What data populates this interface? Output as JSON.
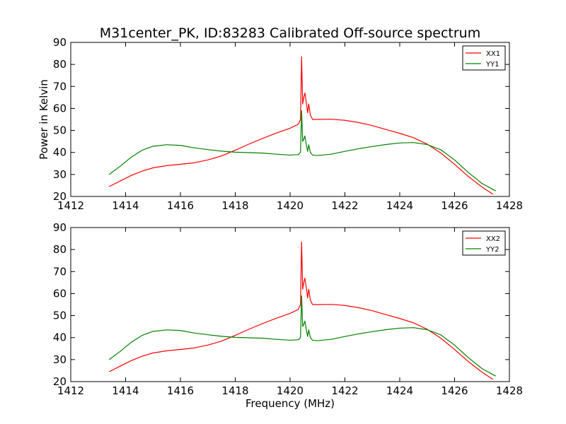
{
  "figure_title": "M31center_PK, ID:83283 Calibrated Off-source spectrum",
  "chart_data": [
    {
      "type": "line",
      "title": "",
      "xlabel": "",
      "ylabel": "Power in Kelvin",
      "xlim": [
        1412,
        1428
      ],
      "ylim": [
        20,
        90
      ],
      "xticks": [
        1412,
        1414,
        1416,
        1418,
        1420,
        1422,
        1424,
        1426,
        1428
      ],
      "yticks": [
        20,
        30,
        40,
        50,
        60,
        70,
        80,
        90
      ],
      "legend_position": "top-right",
      "series": [
        {
          "name": "XX1",
          "color": "#ff0000",
          "points": [
            [
              1413.4,
              24.5
            ],
            [
              1413.8,
              27.0
            ],
            [
              1414.2,
              29.5
            ],
            [
              1414.6,
              31.5
            ],
            [
              1415.0,
              33.0
            ],
            [
              1415.5,
              34.0
            ],
            [
              1416.0,
              34.6
            ],
            [
              1416.5,
              35.3
            ],
            [
              1417.0,
              36.6
            ],
            [
              1417.5,
              38.4
            ],
            [
              1418.0,
              41.0
            ],
            [
              1418.5,
              43.8
            ],
            [
              1419.0,
              46.4
            ],
            [
              1419.5,
              48.8
            ],
            [
              1420.0,
              51.0
            ],
            [
              1420.3,
              52.8
            ],
            [
              1420.38,
              55.0
            ],
            [
              1420.42,
              83.5
            ],
            [
              1420.46,
              62.0
            ],
            [
              1420.5,
              65.0
            ],
            [
              1420.54,
              67.0
            ],
            [
              1420.6,
              62.0
            ],
            [
              1420.64,
              58.0
            ],
            [
              1420.68,
              62.0
            ],
            [
              1420.74,
              57.0
            ],
            [
              1420.82,
              55.0
            ],
            [
              1421.0,
              55.0
            ],
            [
              1421.5,
              55.1
            ],
            [
              1422.0,
              54.6
            ],
            [
              1422.5,
              53.6
            ],
            [
              1423.0,
              52.2
            ],
            [
              1423.5,
              50.4
            ],
            [
              1424.0,
              48.7
            ],
            [
              1424.5,
              46.7
            ],
            [
              1425.0,
              43.8
            ],
            [
              1425.5,
              39.7
            ],
            [
              1426.0,
              34.6
            ],
            [
              1426.5,
              29.1
            ],
            [
              1427.0,
              24.3
            ],
            [
              1427.4,
              21.0
            ]
          ]
        },
        {
          "name": "YY1",
          "color": "#008000",
          "points": [
            [
              1413.4,
              30.0
            ],
            [
              1413.8,
              33.7
            ],
            [
              1414.2,
              37.8
            ],
            [
              1414.6,
              41.0
            ],
            [
              1415.0,
              42.8
            ],
            [
              1415.5,
              43.5
            ],
            [
              1416.0,
              43.2
            ],
            [
              1416.5,
              42.1
            ],
            [
              1417.0,
              41.3
            ],
            [
              1417.5,
              40.6
            ],
            [
              1418.0,
              40.1
            ],
            [
              1418.5,
              39.9
            ],
            [
              1419.0,
              39.7
            ],
            [
              1419.5,
              39.2
            ],
            [
              1420.0,
              38.8
            ],
            [
              1420.3,
              39.0
            ],
            [
              1420.38,
              40.0
            ],
            [
              1420.42,
              59.0
            ],
            [
              1420.46,
              45.0
            ],
            [
              1420.5,
              46.0
            ],
            [
              1420.54,
              47.5
            ],
            [
              1420.6,
              43.0
            ],
            [
              1420.64,
              40.5
            ],
            [
              1420.68,
              43.5
            ],
            [
              1420.74,
              40.0
            ],
            [
              1420.82,
              38.8
            ],
            [
              1421.0,
              38.6
            ],
            [
              1421.5,
              39.2
            ],
            [
              1422.0,
              40.5
            ],
            [
              1422.5,
              41.7
            ],
            [
              1423.0,
              42.7
            ],
            [
              1423.5,
              43.6
            ],
            [
              1424.0,
              44.3
            ],
            [
              1424.5,
              44.5
            ],
            [
              1425.0,
              43.6
            ],
            [
              1425.5,
              41.2
            ],
            [
              1426.0,
              36.6
            ],
            [
              1426.5,
              30.9
            ],
            [
              1427.0,
              25.9
            ],
            [
              1427.5,
              22.5
            ]
          ]
        }
      ]
    },
    {
      "type": "line",
      "title": "",
      "xlabel": "Frequency (MHz)",
      "ylabel": "",
      "xlim": [
        1412,
        1428
      ],
      "ylim": [
        20,
        90
      ],
      "xticks": [
        1412,
        1414,
        1416,
        1418,
        1420,
        1422,
        1424,
        1426,
        1428
      ],
      "yticks": [
        20,
        30,
        40,
        50,
        60,
        70,
        80,
        90
      ],
      "legend_position": "top-right",
      "series": [
        {
          "name": "XX2",
          "color": "#ff0000",
          "points": [
            [
              1413.4,
              24.5
            ],
            [
              1413.8,
              27.0
            ],
            [
              1414.2,
              29.5
            ],
            [
              1414.6,
              31.5
            ],
            [
              1415.0,
              33.0
            ],
            [
              1415.5,
              34.0
            ],
            [
              1416.0,
              34.6
            ],
            [
              1416.5,
              35.3
            ],
            [
              1417.0,
              36.6
            ],
            [
              1417.5,
              38.4
            ],
            [
              1418.0,
              41.0
            ],
            [
              1418.5,
              43.8
            ],
            [
              1419.0,
              46.4
            ],
            [
              1419.5,
              48.8
            ],
            [
              1420.0,
              51.0
            ],
            [
              1420.3,
              52.8
            ],
            [
              1420.38,
              55.0
            ],
            [
              1420.42,
              83.5
            ],
            [
              1420.46,
              62.0
            ],
            [
              1420.5,
              65.0
            ],
            [
              1420.54,
              67.0
            ],
            [
              1420.6,
              62.0
            ],
            [
              1420.64,
              58.0
            ],
            [
              1420.68,
              62.0
            ],
            [
              1420.74,
              57.0
            ],
            [
              1420.82,
              55.0
            ],
            [
              1421.0,
              55.0
            ],
            [
              1421.5,
              55.1
            ],
            [
              1422.0,
              54.6
            ],
            [
              1422.5,
              53.6
            ],
            [
              1423.0,
              52.2
            ],
            [
              1423.5,
              50.4
            ],
            [
              1424.0,
              48.7
            ],
            [
              1424.5,
              46.7
            ],
            [
              1425.0,
              43.8
            ],
            [
              1425.5,
              39.7
            ],
            [
              1426.0,
              34.6
            ],
            [
              1426.5,
              29.1
            ],
            [
              1427.0,
              24.3
            ],
            [
              1427.4,
              21.0
            ]
          ]
        },
        {
          "name": "YY2",
          "color": "#008000",
          "points": [
            [
              1413.4,
              30.0
            ],
            [
              1413.8,
              33.7
            ],
            [
              1414.2,
              37.8
            ],
            [
              1414.6,
              41.0
            ],
            [
              1415.0,
              42.8
            ],
            [
              1415.5,
              43.5
            ],
            [
              1416.0,
              43.2
            ],
            [
              1416.5,
              42.1
            ],
            [
              1417.0,
              41.3
            ],
            [
              1417.5,
              40.6
            ],
            [
              1418.0,
              40.1
            ],
            [
              1418.5,
              39.9
            ],
            [
              1419.0,
              39.7
            ],
            [
              1419.5,
              39.2
            ],
            [
              1420.0,
              38.8
            ],
            [
              1420.3,
              39.0
            ],
            [
              1420.38,
              40.0
            ],
            [
              1420.42,
              59.0
            ],
            [
              1420.46,
              45.0
            ],
            [
              1420.5,
              46.0
            ],
            [
              1420.54,
              47.5
            ],
            [
              1420.6,
              43.0
            ],
            [
              1420.64,
              40.5
            ],
            [
              1420.68,
              43.5
            ],
            [
              1420.74,
              40.0
            ],
            [
              1420.82,
              38.8
            ],
            [
              1421.0,
              38.6
            ],
            [
              1421.5,
              39.2
            ],
            [
              1422.0,
              40.5
            ],
            [
              1422.5,
              41.7
            ],
            [
              1423.0,
              42.7
            ],
            [
              1423.5,
              43.6
            ],
            [
              1424.0,
              44.3
            ],
            [
              1424.5,
              44.5
            ],
            [
              1425.0,
              43.6
            ],
            [
              1425.5,
              41.2
            ],
            [
              1426.0,
              36.6
            ],
            [
              1426.5,
              30.9
            ],
            [
              1427.0,
              25.9
            ],
            [
              1427.5,
              22.5
            ]
          ]
        }
      ]
    }
  ]
}
